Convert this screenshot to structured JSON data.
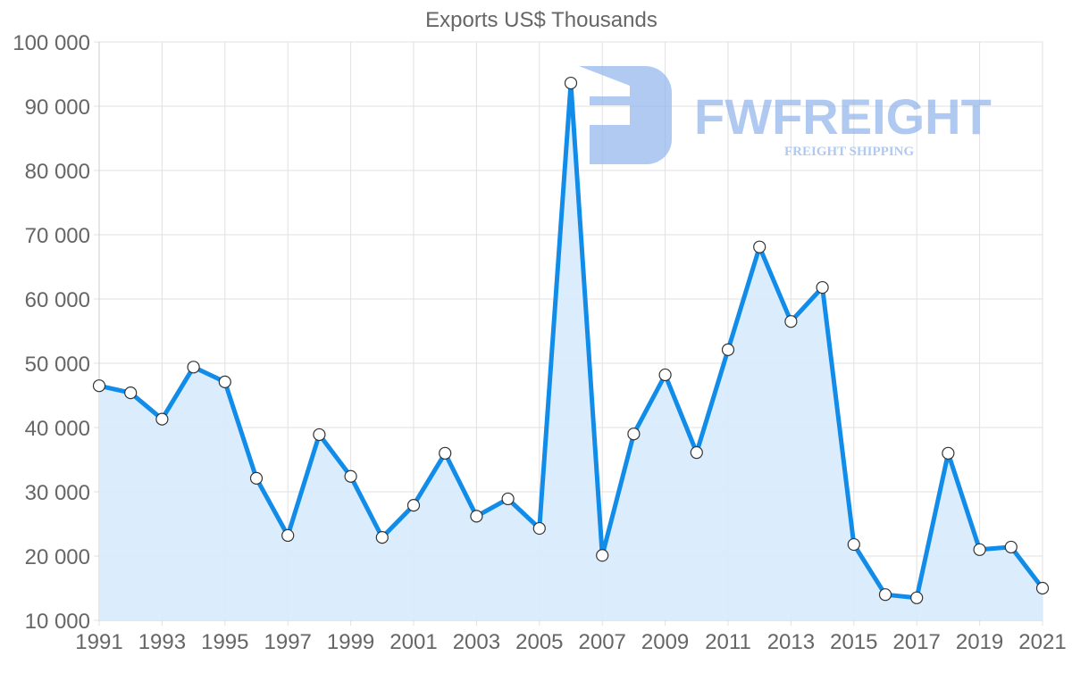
{
  "chart_data": {
    "type": "area",
    "title": "Exports US$ Thousands",
    "xlabel": "",
    "ylabel": "",
    "x": [
      1991,
      1992,
      1993,
      1994,
      1995,
      1996,
      1997,
      1998,
      1999,
      2000,
      2001,
      2002,
      2003,
      2004,
      2005,
      2006,
      2007,
      2008,
      2009,
      2010,
      2011,
      2012,
      2013,
      2014,
      2015,
      2016,
      2017,
      2018,
      2019,
      2020,
      2021
    ],
    "series": [
      {
        "name": "Exports US$ Thousands",
        "values": [
          46500,
          45400,
          41300,
          49400,
          47100,
          32100,
          23200,
          38900,
          32400,
          22900,
          27900,
          36000,
          26200,
          28900,
          24300,
          93600,
          20100,
          39000,
          48200,
          36100,
          52100,
          68100,
          56500,
          61800,
          21800,
          14000,
          13500,
          36000,
          21000,
          21400,
          15000
        ]
      }
    ],
    "ylim": [
      10000,
      100000
    ],
    "yticks": [
      10000,
      20000,
      30000,
      40000,
      50000,
      60000,
      70000,
      80000,
      90000,
      100000
    ],
    "ytick_labels": [
      "10 000",
      "20 000",
      "30 000",
      "40 000",
      "50 000",
      "60 000",
      "70 000",
      "80 000",
      "90 000",
      "100 000"
    ],
    "xtick_labels": [
      "1991",
      "1993",
      "1995",
      "1997",
      "1999",
      "2001",
      "2003",
      "2005",
      "2007",
      "2009",
      "2011",
      "2013",
      "2015",
      "2017",
      "2019",
      "2021"
    ],
    "grid": true,
    "legend": null,
    "colors": {
      "line": "#118ce9",
      "fill": "#d9ecfc",
      "marker_fill": "#ffffff",
      "marker_stroke": "#333333"
    }
  },
  "watermark": {
    "brand": "FWFREIGHT",
    "tagline": "FREIGHT SHIPPING"
  }
}
